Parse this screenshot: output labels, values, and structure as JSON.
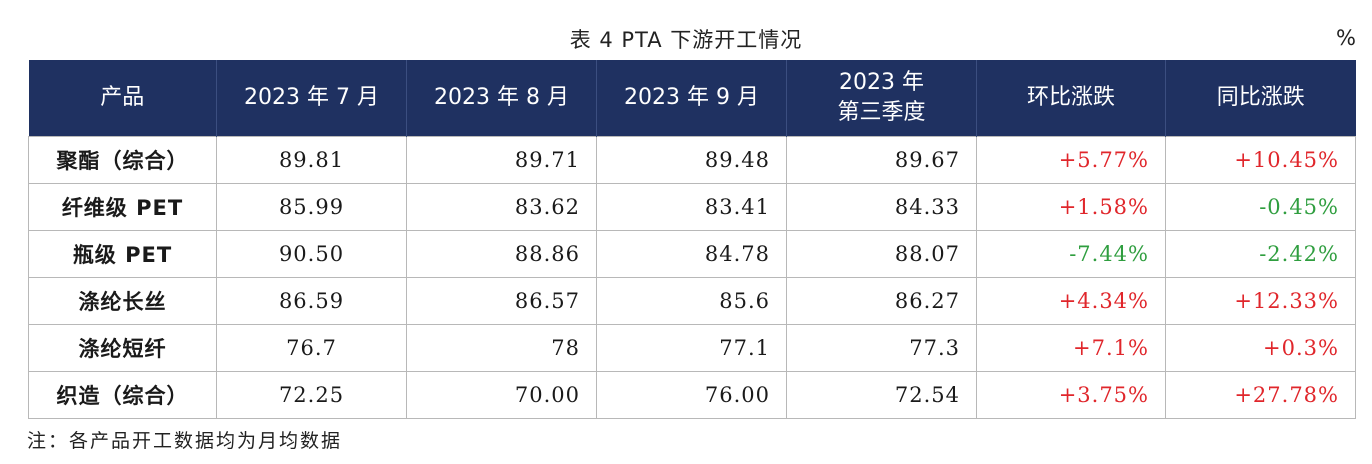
{
  "caption": "表 4  PTA 下游开工情况",
  "unit": "%",
  "headers": [
    "产品",
    "2023 年 7 月",
    "2023 年 8 月",
    "2023 年 9 月",
    "2023 年\n第三季度",
    "环比涨跌",
    "同比涨跌"
  ],
  "rows": [
    {
      "product": "聚酯（综合）",
      "jul": "89.81",
      "aug": "89.71",
      "sep": "89.48",
      "q3": "89.67",
      "mom": "+5.77%",
      "yoy": "+10.45%"
    },
    {
      "product": "纤维级 PET",
      "jul": "85.99",
      "aug": "83.62",
      "sep": "83.41",
      "q3": "84.33",
      "mom": "+1.58%",
      "yoy": "-0.45%"
    },
    {
      "product": "瓶级 PET",
      "jul": "90.50",
      "aug": "88.86",
      "sep": "84.78",
      "q3": "88.07",
      "mom": "-7.44%",
      "yoy": "-2.42%"
    },
    {
      "product": "涤纶长丝",
      "jul": "86.59",
      "aug": "86.57",
      "sep": "85.6",
      "q3": "86.27",
      "mom": "+4.34%",
      "yoy": "+12.33%"
    },
    {
      "product": "涤纶短纤",
      "jul": "76.7",
      "aug": "78",
      "sep": "77.1",
      "q3": "77.3",
      "mom": "+7.1%",
      "yoy": "+0.3%"
    },
    {
      "product": "织造（综合）",
      "jul": "72.25",
      "aug": "70.00",
      "sep": "76.00",
      "q3": "72.54",
      "mom": "+3.75%",
      "yoy": "+27.78%"
    }
  ],
  "colors": {
    "header_bg": "#1f3161",
    "rise": "#e0262b",
    "fall": "#2f9e3f"
  },
  "note": "注：各产品开工数据均为月均数据"
}
